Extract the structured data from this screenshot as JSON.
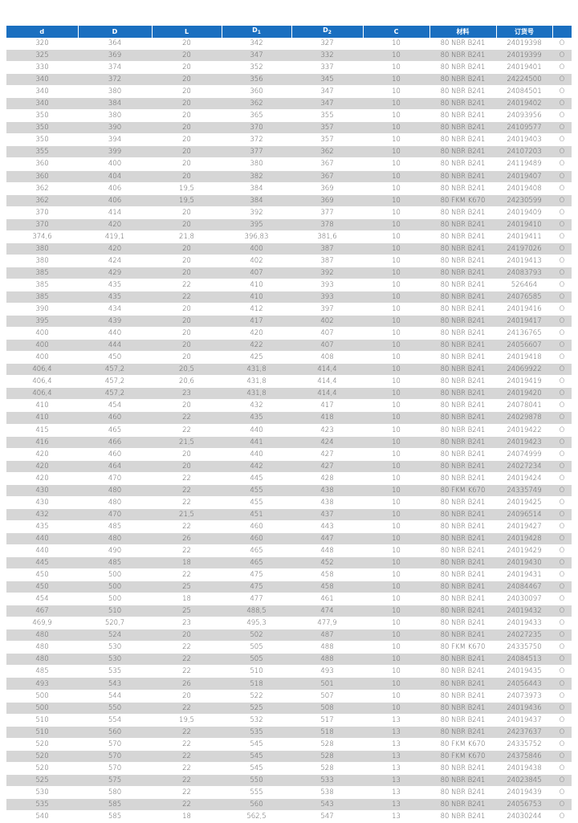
{
  "header": {
    "d": "d",
    "D": "D",
    "L": "L",
    "D1": "D",
    "D1_sub": "1",
    "D2": "D",
    "D2_sub": "2",
    "C": "C",
    "material": "材料",
    "order_no": "订货号",
    "mark": ""
  },
  "colors": {
    "header_bg": "#1a6fc0",
    "stripe": "#d6d6d6"
  },
  "rows": [
    [
      "320",
      "364",
      "20",
      "342",
      "327",
      "10",
      "80 NBR B241",
      "24019398",
      "O"
    ],
    [
      "325",
      "369",
      "20",
      "347",
      "332",
      "10",
      "80 NBR B241",
      "24019399",
      "O"
    ],
    [
      "330",
      "374",
      "20",
      "352",
      "337",
      "10",
      "80 NBR B241",
      "24019401",
      "O"
    ],
    [
      "340",
      "372",
      "20",
      "356",
      "345",
      "10",
      "80 NBR B241",
      "24224500",
      "O"
    ],
    [
      "340",
      "380",
      "20",
      "360",
      "347",
      "10",
      "80 NBR B241",
      "24084501",
      "O"
    ],
    [
      "340",
      "384",
      "20",
      "362",
      "347",
      "10",
      "80 NBR B241",
      "24019402",
      "O"
    ],
    [
      "350",
      "380",
      "20",
      "365",
      "355",
      "10",
      "80 NBR B241",
      "24093956",
      "O"
    ],
    [
      "350",
      "390",
      "20",
      "370",
      "357",
      "10",
      "80 NBR B241",
      "24109577",
      "O"
    ],
    [
      "350",
      "394",
      "20",
      "372",
      "357",
      "10",
      "80 NBR B241",
      "24019403",
      "O"
    ],
    [
      "355",
      "399",
      "20",
      "377",
      "362",
      "10",
      "80 NBR B241",
      "24107203",
      "O"
    ],
    [
      "360",
      "400",
      "20",
      "380",
      "367",
      "10",
      "80 NBR B241",
      "24119489",
      "O"
    ],
    [
      "360",
      "404",
      "20",
      "382",
      "367",
      "10",
      "80 NBR B241",
      "24019407",
      "O"
    ],
    [
      "362",
      "406",
      "19,5",
      "384",
      "369",
      "10",
      "80 NBR B241",
      "24019408",
      "O"
    ],
    [
      "362",
      "406",
      "19,5",
      "384",
      "369",
      "10",
      "80 FKM K670",
      "24230599",
      "O"
    ],
    [
      "370",
      "414",
      "20",
      "392",
      "377",
      "10",
      "80 NBR B241",
      "24019409",
      "O"
    ],
    [
      "370",
      "420",
      "20",
      "395",
      "378",
      "10",
      "80 NBR B241",
      "24019410",
      "O"
    ],
    [
      "374,6",
      "419,1",
      "21,8",
      "396,83",
      "381,6",
      "10",
      "80 NBR B241",
      "24019411",
      "O"
    ],
    [
      "380",
      "420",
      "20",
      "400",
      "387",
      "10",
      "80 NBR B241",
      "24197026",
      "O"
    ],
    [
      "380",
      "424",
      "20",
      "402",
      "387",
      "10",
      "80 NBR B241",
      "24019413",
      "O"
    ],
    [
      "385",
      "429",
      "20",
      "407",
      "392",
      "10",
      "80 NBR B241",
      "24083793",
      "O"
    ],
    [
      "385",
      "435",
      "22",
      "410",
      "393",
      "10",
      "80 NBR B241",
      "526464",
      "O"
    ],
    [
      "385",
      "435",
      "22",
      "410",
      "393",
      "10",
      "80 NBR B241",
      "24076585",
      "O"
    ],
    [
      "390",
      "434",
      "20",
      "412",
      "397",
      "10",
      "80 NBR B241",
      "24019416",
      "O"
    ],
    [
      "395",
      "439",
      "20",
      "417",
      "402",
      "10",
      "80 NBR B241",
      "24019417",
      "O"
    ],
    [
      "400",
      "440",
      "20",
      "420",
      "407",
      "10",
      "80 NBR B241",
      "24136765",
      "O"
    ],
    [
      "400",
      "444",
      "20",
      "422",
      "407",
      "10",
      "80 NBR B241",
      "24056607",
      "O"
    ],
    [
      "400",
      "450",
      "20",
      "425",
      "408",
      "10",
      "80 NBR B241",
      "24019418",
      "O"
    ],
    [
      "406,4",
      "457,2",
      "20,5",
      "431,8",
      "414,4",
      "10",
      "80 NBR B241",
      "24069922",
      "O"
    ],
    [
      "406,4",
      "457,2",
      "20,6",
      "431,8",
      "414,4",
      "10",
      "80 NBR B241",
      "24019419",
      "O"
    ],
    [
      "406,4",
      "457,2",
      "23",
      "431,8",
      "414,4",
      "10",
      "80 NBR B241",
      "24019420",
      "O"
    ],
    [
      "410",
      "454",
      "20",
      "432",
      "417",
      "10",
      "80 NBR B241",
      "24078041",
      "O"
    ],
    [
      "410",
      "460",
      "22",
      "435",
      "418",
      "10",
      "80 NBR B241",
      "24029878",
      "O"
    ],
    [
      "415",
      "465",
      "22",
      "440",
      "423",
      "10",
      "80 NBR B241",
      "24019422",
      "O"
    ],
    [
      "416",
      "466",
      "21,5",
      "441",
      "424",
      "10",
      "80 NBR B241",
      "24019423",
      "O"
    ],
    [
      "420",
      "460",
      "20",
      "440",
      "427",
      "10",
      "80 NBR B241",
      "24074999",
      "O"
    ],
    [
      "420",
      "464",
      "20",
      "442",
      "427",
      "10",
      "80 NBR B241",
      "24027234",
      "O"
    ],
    [
      "420",
      "470",
      "22",
      "445",
      "428",
      "10",
      "80 NBR B241",
      "24019424",
      "O"
    ],
    [
      "430",
      "480",
      "22",
      "455",
      "438",
      "10",
      "80 FKM K670",
      "24335749",
      "O"
    ],
    [
      "430",
      "480",
      "22",
      "455",
      "438",
      "10",
      "80 NBR B241",
      "24019425",
      "O"
    ],
    [
      "432",
      "470",
      "21,5",
      "451",
      "437",
      "10",
      "80 NBR B241",
      "24096514",
      "O"
    ],
    [
      "435",
      "485",
      "22",
      "460",
      "443",
      "10",
      "80 NBR B241",
      "24019427",
      "O"
    ],
    [
      "440",
      "480",
      "26",
      "460",
      "447",
      "10",
      "80 NBR B241",
      "24019428",
      "O"
    ],
    [
      "440",
      "490",
      "22",
      "465",
      "448",
      "10",
      "80 NBR B241",
      "24019429",
      "O"
    ],
    [
      "445",
      "485",
      "18",
      "465",
      "452",
      "10",
      "80 NBR B241",
      "24019430",
      "O"
    ],
    [
      "450",
      "500",
      "22",
      "475",
      "458",
      "10",
      "80 NBR B241",
      "24019431",
      "O"
    ],
    [
      "450",
      "500",
      "25",
      "475",
      "458",
      "10",
      "80 NBR B241",
      "24084467",
      "O"
    ],
    [
      "454",
      "500",
      "18",
      "477",
      "461",
      "10",
      "80 NBR B241",
      "24030097",
      "O"
    ],
    [
      "467",
      "510",
      "25",
      "488,5",
      "474",
      "10",
      "80 NBR B241",
      "24019432",
      "O"
    ],
    [
      "469,9",
      "520,7",
      "23",
      "495,3",
      "477,9",
      "10",
      "80 NBR B241",
      "24019433",
      "O"
    ],
    [
      "480",
      "524",
      "20",
      "502",
      "487",
      "10",
      "80 NBR B241",
      "24027235",
      "O"
    ],
    [
      "480",
      "530",
      "22",
      "505",
      "488",
      "10",
      "80 FKM K670",
      "24335750",
      "O"
    ],
    [
      "480",
      "530",
      "22",
      "505",
      "488",
      "10",
      "80 NBR B241",
      "24084513",
      "O"
    ],
    [
      "485",
      "535",
      "22",
      "510",
      "493",
      "10",
      "80 NBR B241",
      "24019435",
      "O"
    ],
    [
      "493",
      "543",
      "26",
      "518",
      "501",
      "10",
      "80 NBR B241",
      "24056443",
      "O"
    ],
    [
      "500",
      "544",
      "20",
      "522",
      "507",
      "10",
      "80 NBR B241",
      "24073973",
      "O"
    ],
    [
      "500",
      "550",
      "22",
      "525",
      "508",
      "10",
      "80 NBR B241",
      "24019436",
      "O"
    ],
    [
      "510",
      "554",
      "19,5",
      "532",
      "517",
      "13",
      "80 NBR B241",
      "24019437",
      "O"
    ],
    [
      "510",
      "560",
      "22",
      "535",
      "518",
      "13",
      "80 NBR B241",
      "24237637",
      "O"
    ],
    [
      "520",
      "570",
      "22",
      "545",
      "528",
      "13",
      "80 FKM K670",
      "24335752",
      "O"
    ],
    [
      "520",
      "570",
      "22",
      "545",
      "528",
      "13",
      "80 FKM K670",
      "24375846",
      "O"
    ],
    [
      "520",
      "570",
      "22",
      "545",
      "528",
      "13",
      "80 NBR B241",
      "24019438",
      "O"
    ],
    [
      "525",
      "575",
      "22",
      "550",
      "533",
      "13",
      "80 NBR B241",
      "24023845",
      "O"
    ],
    [
      "530",
      "580",
      "22",
      "555",
      "538",
      "13",
      "80 NBR B241",
      "24019439",
      "O"
    ],
    [
      "535",
      "585",
      "22",
      "560",
      "543",
      "13",
      "80 NBR B241",
      "24056753",
      "O"
    ],
    [
      "540",
      "585",
      "18",
      "562,5",
      "547",
      "13",
      "80 NBR B241",
      "24030244",
      "O"
    ]
  ]
}
